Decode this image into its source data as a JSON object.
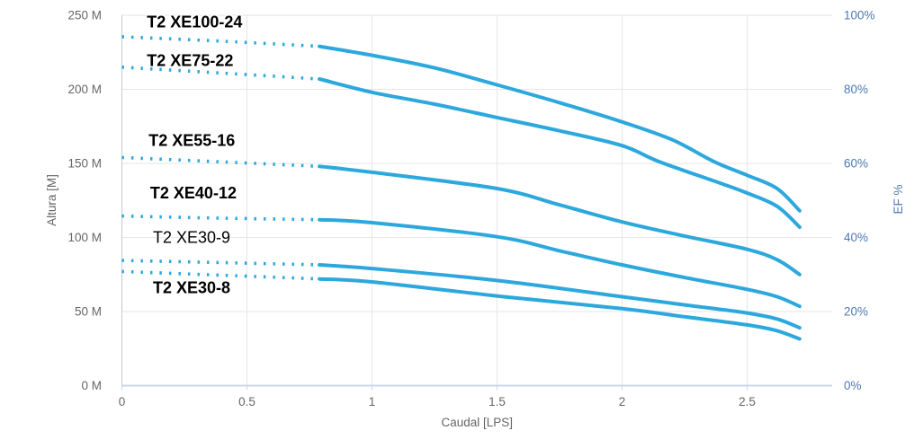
{
  "chart_data": {
    "type": "line",
    "title": "",
    "xlabel": "Caudal [LPS]",
    "ylabel_left": "Altura [M]",
    "ylabel_right": "EF %",
    "xlim": [
      0,
      2.84
    ],
    "ylim_left": [
      0,
      250
    ],
    "ylim_right": [
      0,
      100
    ],
    "grid": true,
    "legend_position": "none",
    "x_ticks": [
      {
        "v": 0,
        "label": "0"
      },
      {
        "v": 0.5,
        "label": "0.5"
      },
      {
        "v": 1,
        "label": "1"
      },
      {
        "v": 1.5,
        "label": "1.5"
      },
      {
        "v": 2,
        "label": "2"
      },
      {
        "v": 2.5,
        "label": "2.5"
      }
    ],
    "y_ticks_left": [
      {
        "v": 0,
        "label": "0 M"
      },
      {
        "v": 50,
        "label": "50 M"
      },
      {
        "v": 100,
        "label": "100 M"
      },
      {
        "v": 150,
        "label": "150 M"
      },
      {
        "v": 200,
        "label": "200 M"
      },
      {
        "v": 250,
        "label": "250 M"
      }
    ],
    "y_ticks_right": [
      {
        "v": 0,
        "label": "0%"
      },
      {
        "v": 20,
        "label": "20%"
      },
      {
        "v": 40,
        "label": "40%"
      },
      {
        "v": 60,
        "label": "60%"
      },
      {
        "v": 80,
        "label": "80%"
      },
      {
        "v": 100,
        "label": "100%"
      }
    ],
    "colors": {
      "series": "#2da8dd",
      "tick_text_left": "#666666",
      "tick_text_right": "#4e79b2",
      "axis_title_left": "#666666",
      "axis_title_right": "#4e79b2",
      "grid": "#e6e6e6",
      "x_axis_line": "#ccd6eb",
      "y_axis_line": "#c9c9c9",
      "series_label": "#000000"
    },
    "series": [
      {
        "name": "T2 XE100-24",
        "label": {
          "text": "T2 XE100-24",
          "x": 0.1,
          "y": 245.5,
          "bold": true
        },
        "dotted": [
          [
            0,
            235.5
          ],
          [
            0.4,
            232.5
          ],
          [
            0.79,
            229
          ]
        ],
        "solid": [
          [
            0.79,
            229
          ],
          [
            1.0,
            223
          ],
          [
            1.25,
            214.5
          ],
          [
            1.5,
            203
          ],
          [
            1.75,
            191
          ],
          [
            2.0,
            178
          ],
          [
            2.2,
            166
          ],
          [
            2.37,
            151
          ],
          [
            2.5,
            142
          ],
          [
            2.62,
            133
          ],
          [
            2.71,
            118
          ]
        ]
      },
      {
        "name": "T2 XE75-22",
        "label": {
          "text": "T2 XE75-22",
          "x": 0.1,
          "y": 219.5,
          "bold": true
        },
        "dotted": [
          [
            0,
            215
          ],
          [
            0.4,
            211
          ],
          [
            0.79,
            207
          ]
        ],
        "solid": [
          [
            0.79,
            207
          ],
          [
            1.0,
            198
          ],
          [
            1.25,
            190
          ],
          [
            1.5,
            181
          ],
          [
            1.75,
            172
          ],
          [
            2.0,
            162
          ],
          [
            2.15,
            151
          ],
          [
            2.37,
            138
          ],
          [
            2.5,
            130
          ],
          [
            2.62,
            121
          ],
          [
            2.71,
            107
          ]
        ]
      },
      {
        "name": "T2 XE55-16",
        "label": {
          "text": "T2 XE55-16",
          "x": 0.107,
          "y": 165.5,
          "bold": true
        },
        "dotted": [
          [
            0,
            154
          ],
          [
            0.4,
            151
          ],
          [
            0.79,
            148
          ]
        ],
        "solid": [
          [
            0.79,
            148
          ],
          [
            1.0,
            144
          ],
          [
            1.5,
            133
          ],
          [
            1.75,
            122
          ],
          [
            2.0,
            110.5
          ],
          [
            2.25,
            101
          ],
          [
            2.5,
            92
          ],
          [
            2.62,
            85
          ],
          [
            2.71,
            75
          ]
        ]
      },
      {
        "name": "T2 XE40-12",
        "label": {
          "text": "T2 XE40-12",
          "x": 0.113,
          "y": 130,
          "bold": true
        },
        "dotted": [
          [
            0,
            114.5
          ],
          [
            0.4,
            113
          ],
          [
            0.79,
            112
          ]
        ],
        "solid": [
          [
            0.79,
            112
          ],
          [
            1.0,
            110
          ],
          [
            1.5,
            100.5
          ],
          [
            1.75,
            91
          ],
          [
            2.0,
            81.5
          ],
          [
            2.25,
            73
          ],
          [
            2.5,
            65
          ],
          [
            2.62,
            60
          ],
          [
            2.71,
            53.5
          ]
        ]
      },
      {
        "name": "T2 XE30-9",
        "label": {
          "text": "T2 XE30-9",
          "x": 0.124,
          "y": 100,
          "bold": false
        },
        "dotted": [
          [
            0,
            84.5
          ],
          [
            0.4,
            83
          ],
          [
            0.79,
            81.5
          ]
        ],
        "solid": [
          [
            0.79,
            81.5
          ],
          [
            1.0,
            79
          ],
          [
            1.5,
            71
          ],
          [
            2.0,
            60
          ],
          [
            2.25,
            54.5
          ],
          [
            2.5,
            49
          ],
          [
            2.62,
            45
          ],
          [
            2.71,
            39
          ]
        ]
      },
      {
        "name": "T2 XE30-8",
        "label": {
          "text": "T2 XE30-8",
          "x": 0.124,
          "y": 66,
          "bold": true
        },
        "dotted": [
          [
            0,
            77
          ],
          [
            0.4,
            74.5
          ],
          [
            0.79,
            72
          ]
        ],
        "solid": [
          [
            0.79,
            72
          ],
          [
            1.0,
            70
          ],
          [
            1.5,
            60.5
          ],
          [
            2.0,
            52
          ],
          [
            2.25,
            46.5
          ],
          [
            2.5,
            41
          ],
          [
            2.62,
            37
          ],
          [
            2.71,
            31.5
          ]
        ]
      }
    ]
  }
}
